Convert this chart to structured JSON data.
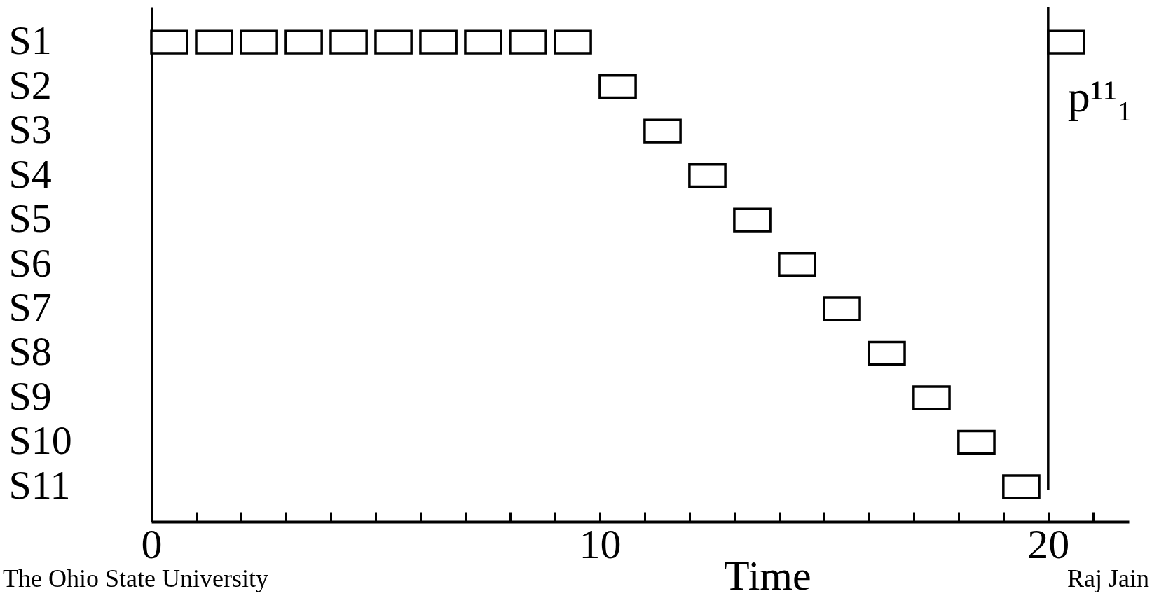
{
  "chart_data": {
    "type": "bar",
    "orientation": "horizontal",
    "xlabel": "Time",
    "categories": [
      "S1",
      "S2",
      "S3",
      "S4",
      "S5",
      "S6",
      "S7",
      "S8",
      "S9",
      "S10",
      "S11"
    ],
    "series": [
      {
        "color": "#000000",
        "base": [
          0,
          10,
          11,
          12,
          13,
          14,
          15,
          16,
          17,
          18,
          19
        ],
        "values": [
          0.8,
          0.8,
          0.8,
          0.8,
          0.8,
          0.8,
          0.8,
          0.8,
          0.8,
          0.8,
          0.8
        ]
      },
      {
        "color": "#000000",
        "base": [
          1,
          null,
          null,
          null,
          null,
          null,
          null,
          null,
          null,
          null,
          null
        ],
        "values": [
          0.8,
          null,
          null,
          null,
          null,
          null,
          null,
          null,
          null,
          null,
          null
        ]
      },
      {
        "color": "#000000",
        "base": [
          2,
          null,
          null,
          null,
          null,
          null,
          null,
          null,
          null,
          null,
          null
        ],
        "values": [
          0.8,
          null,
          null,
          null,
          null,
          null,
          null,
          null,
          null,
          null,
          null
        ]
      },
      {
        "color": "#000000",
        "base": [
          3,
          null,
          null,
          null,
          null,
          null,
          null,
          null,
          null,
          null,
          null
        ],
        "values": [
          0.8,
          null,
          null,
          null,
          null,
          null,
          null,
          null,
          null,
          null,
          null
        ]
      },
      {
        "color": "#000000",
        "base": [
          4,
          null,
          null,
          null,
          null,
          null,
          null,
          null,
          null,
          null,
          null
        ],
        "values": [
          0.8,
          null,
          null,
          null,
          null,
          null,
          null,
          null,
          null,
          null,
          null
        ]
      },
      {
        "color": "#000000",
        "base": [
          5,
          null,
          null,
          null,
          null,
          null,
          null,
          null,
          null,
          null,
          null
        ],
        "values": [
          0.8,
          null,
          null,
          null,
          null,
          null,
          null,
          null,
          null,
          null,
          null
        ]
      },
      {
        "color": "#000000",
        "base": [
          6,
          null,
          null,
          null,
          null,
          null,
          null,
          null,
          null,
          null,
          null
        ],
        "values": [
          0.8,
          null,
          null,
          null,
          null,
          null,
          null,
          null,
          null,
          null,
          null
        ]
      },
      {
        "color": "#000000",
        "base": [
          7,
          null,
          null,
          null,
          null,
          null,
          null,
          null,
          null,
          null,
          null
        ],
        "values": [
          0.8,
          null,
          null,
          null,
          null,
          null,
          null,
          null,
          null,
          null,
          null
        ]
      },
      {
        "color": "#000000",
        "base": [
          8,
          null,
          null,
          null,
          null,
          null,
          null,
          null,
          null,
          null,
          null
        ],
        "values": [
          0.8,
          null,
          null,
          null,
          null,
          null,
          null,
          null,
          null,
          null,
          null
        ]
      },
      {
        "color": "#000000",
        "base": [
          9,
          null,
          null,
          null,
          null,
          null,
          null,
          null,
          null,
          null,
          null
        ],
        "values": [
          0.8,
          null,
          null,
          null,
          null,
          null,
          null,
          null,
          null,
          null,
          null
        ]
      },
      {
        "color": "#000000",
        "base": [
          20,
          null,
          null,
          null,
          null,
          null,
          null,
          null,
          null,
          null,
          null
        ],
        "values": [
          0.8,
          null,
          null,
          null,
          null,
          null,
          null,
          null,
          null,
          null,
          null
        ]
      }
    ],
    "xlim": [
      0,
      21.8
    ],
    "xticks": [
      0,
      {
        "value": 1,
        "label": null
      },
      {
        "value": 2,
        "label": null
      },
      {
        "value": 3,
        "label": null
      },
      {
        "value": 4,
        "label": null
      },
      {
        "value": 5,
        "label": null
      },
      {
        "value": 6,
        "label": null
      },
      {
        "value": 7,
        "label": null
      },
      {
        "value": 8,
        "label": null
      },
      {
        "value": 9,
        "label": null
      },
      10,
      {
        "value": 11,
        "label": null
      },
      {
        "value": 12,
        "label": null
      },
      {
        "value": 13,
        "label": null
      },
      {
        "value": 14,
        "label": null
      },
      {
        "value": 15,
        "label": null
      },
      {
        "value": 16,
        "label": null
      },
      {
        "value": 17,
        "label": null
      },
      {
        "value": 18,
        "label": null
      },
      {
        "value": 19,
        "label": null
      },
      20,
      {
        "value": 21,
        "label": null
      }
    ],
    "ref_lines": [
      {
        "axis": "x",
        "value": 20,
        "label": "p¹¹₁"
      }
    ],
    "annotations": [
      "The Ohio State University",
      "Raj Jain"
    ],
    "grid": false
  }
}
